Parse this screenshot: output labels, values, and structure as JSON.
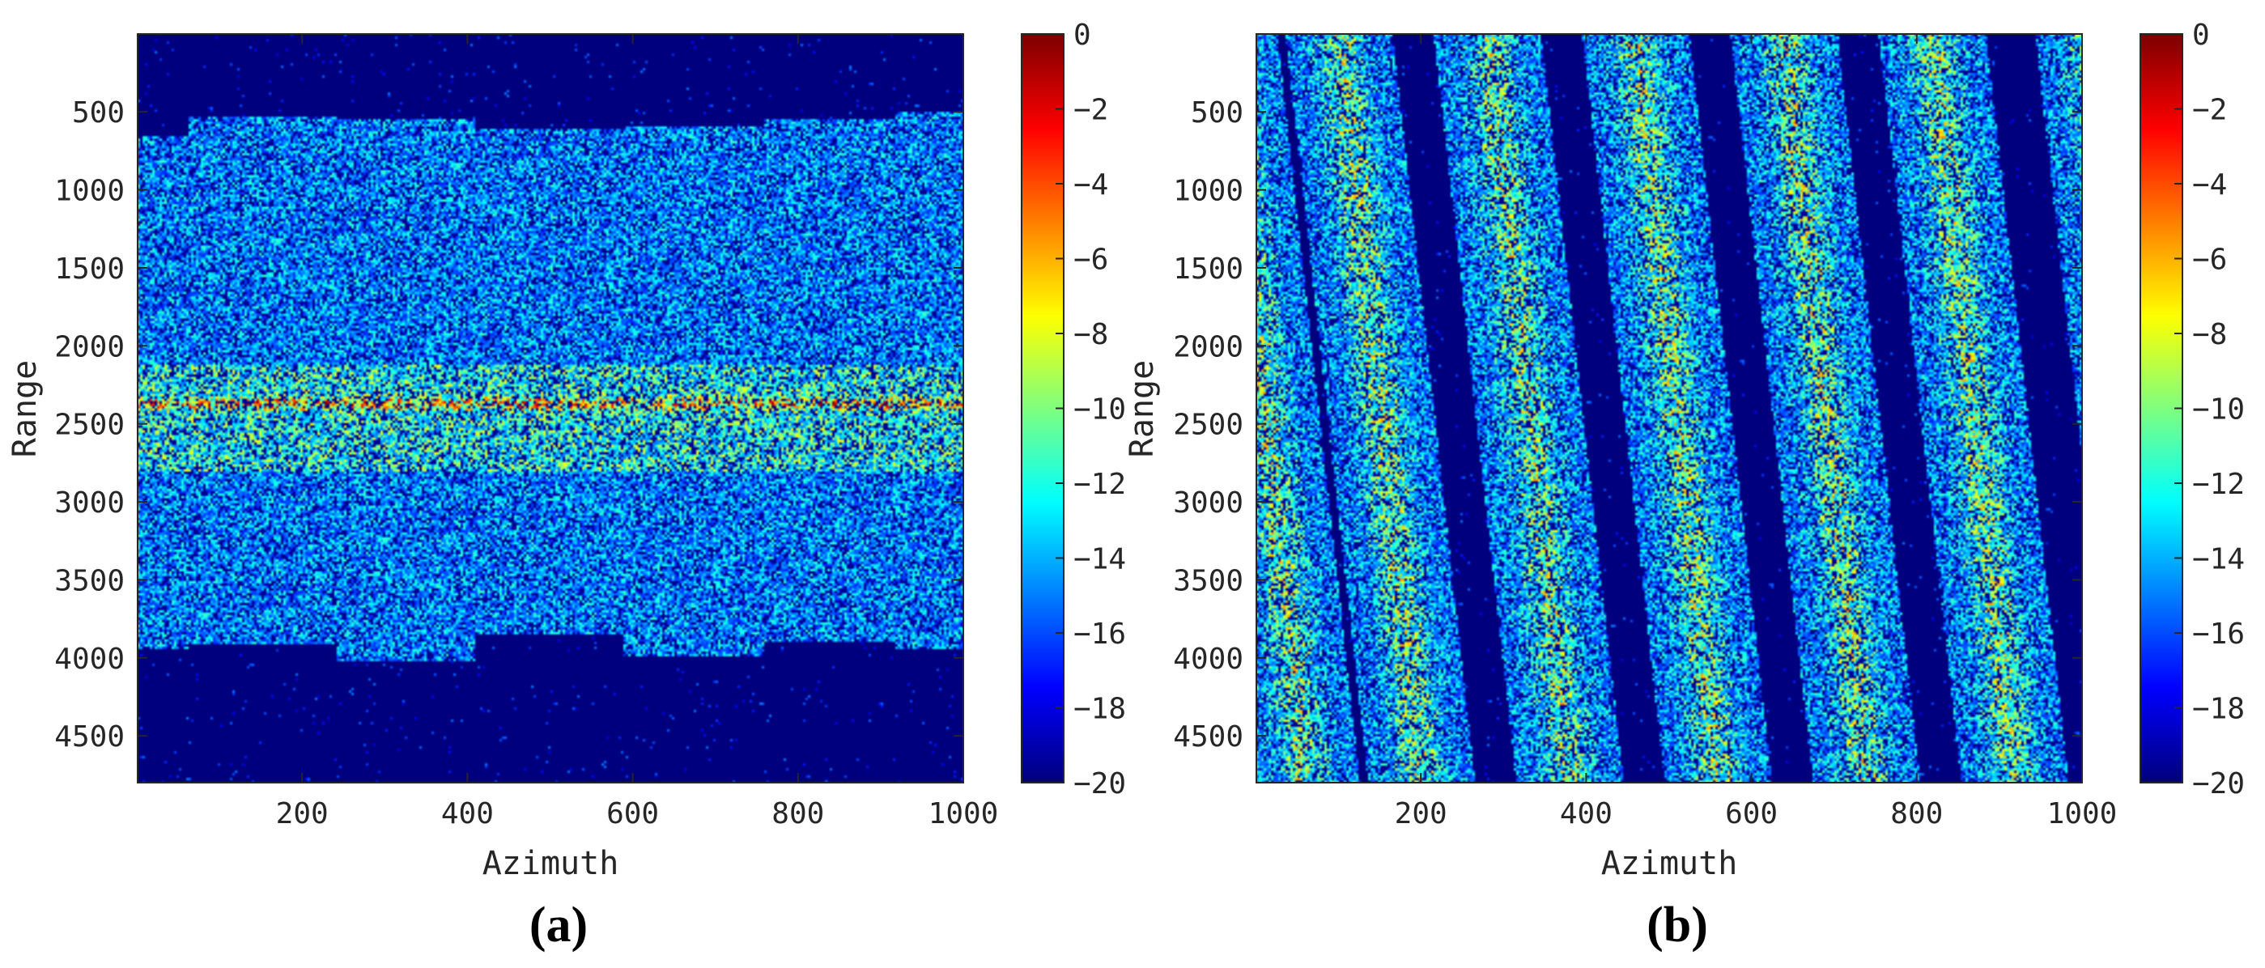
{
  "colormap": [
    "#00007f",
    "#0000ff",
    "#007fff",
    "#00ffff",
    "#7fff7f",
    "#ffff00",
    "#ff7f00",
    "#ff0000",
    "#7f0000"
  ],
  "chart_data": [
    {
      "type": "heatmap",
      "panel_label": "(a)",
      "xlabel": "Azimuth",
      "ylabel": "Range",
      "xlim": [
        1,
        1000
      ],
      "ylim": [
        1,
        4800
      ],
      "y_reversed": true,
      "xticks": [
        "200",
        "400",
        "600",
        "800",
        "1000"
      ],
      "yticks": [
        "500",
        "1000",
        "1500",
        "2000",
        "2500",
        "3000",
        "3500",
        "4000",
        "4500"
      ],
      "colorbar": {
        "ticks": [
          "0",
          "−2",
          "−4",
          "−6",
          "−8",
          "−10",
          "−12",
          "−14",
          "−16",
          "−18",
          "−20"
        ],
        "range": [
          -20,
          0
        ]
      },
      "pattern": {
        "kind": "horizontal-band",
        "band_edges_azimuth": [
          0,
          60,
          240,
          410,
          590,
          760,
          920,
          1000
        ],
        "band_top_range": [
          650,
          520,
          540,
          600,
          580,
          540,
          500
        ],
        "band_bottom_range": [
          3950,
          3920,
          4020,
          3850,
          4000,
          3900,
          3950
        ],
        "bright_line_range": [
          2120,
          2800
        ],
        "peak_range": 2370
      }
    },
    {
      "type": "heatmap",
      "panel_label": "(b)",
      "xlabel": "Azimuth",
      "ylabel": "Range",
      "xlim": [
        1,
        1000
      ],
      "ylim": [
        1,
        4800
      ],
      "y_reversed": true,
      "xticks": [
        "200",
        "400",
        "600",
        "800",
        "1000"
      ],
      "yticks": [
        "500",
        "1000",
        "1500",
        "2000",
        "2500",
        "3000",
        "3500",
        "4000",
        "4500"
      ],
      "colorbar": {
        "ticks": [
          "0",
          "−2",
          "−4",
          "−6",
          "−8",
          "−10",
          "−12",
          "−14",
          "−16",
          "−18",
          "−20"
        ],
        "range": [
          -20,
          0
        ]
      },
      "pattern": {
        "kind": "diagonal-stripes",
        "stripe_center_azimuth_at_top": [
          -40,
          100,
          280,
          460,
          640,
          820,
          1010
        ],
        "stripe_azimuth_shift_over_range": 100,
        "stripe_half_width_azimuth": 65
      }
    }
  ]
}
